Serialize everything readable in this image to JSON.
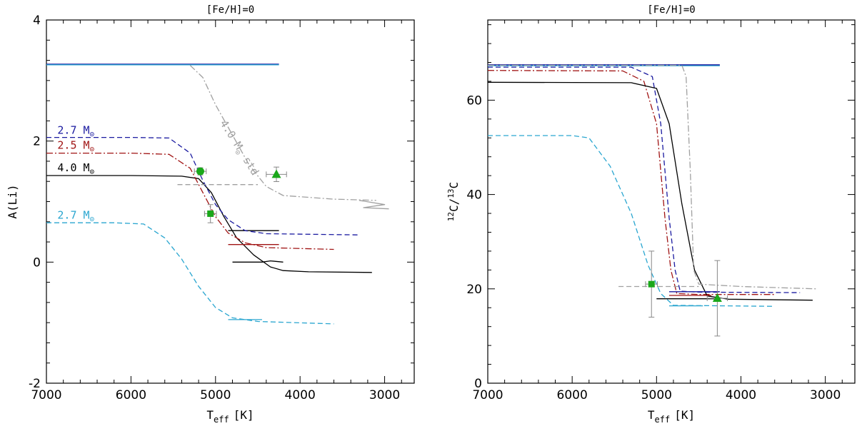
{
  "chart_data": [
    {
      "type": "line",
      "title": "[Fe/H]=0",
      "xlabel": "T",
      "xlabel_sub": "eff",
      "xlabel_unit": "[K]",
      "ylabel": "A(Li)",
      "xlim": [
        7000,
        2650
      ],
      "ylim": [
        -2,
        4
      ],
      "xticks": [
        7000,
        6000,
        5000,
        4000,
        3000
      ],
      "yticks": [
        -2,
        0,
        2,
        4
      ],
      "annotations": [
        {
          "text": "2.7 M",
          "color": "#1a1aa0",
          "x": 6870,
          "y": 2.12
        },
        {
          "text": "2.5 M",
          "color": "#a01414",
          "x": 6870,
          "y": 1.87
        },
        {
          "text": "4.0 M",
          "color": "#000000",
          "x": 6870,
          "y": 1.5
        },
        {
          "text": "2.7 M",
          "color": "#2aa6d0",
          "x": 6870,
          "y": 0.72
        },
        {
          "text": "4.0 M",
          "suffix": " std",
          "color": "#a0a0a0",
          "x": 4950,
          "y": 2.3,
          "rotate": 58
        }
      ],
      "series": [
        {
          "color": "#000000",
          "style": "solid",
          "points": [
            [
              7000,
              1.43
            ],
            [
              6000,
              1.43
            ],
            [
              5400,
              1.42
            ],
            [
              5200,
              1.38
            ],
            [
              5050,
              1.15
            ],
            [
              4900,
              0.75
            ],
            [
              4750,
              0.4
            ],
            [
              4550,
              0.12
            ],
            [
              4350,
              -0.08
            ],
            [
              4200,
              -0.14
            ],
            [
              3900,
              -0.16
            ],
            [
              3150,
              -0.17
            ]
          ]
        },
        {
          "color": "#000000",
          "style": "solid",
          "points": [
            [
              4800,
              0.0
            ],
            [
              4450,
              0.0
            ],
            [
              4350,
              0.02
            ],
            [
              4200,
              0.0
            ]
          ]
        },
        {
          "color": "#000000",
          "style": "solid",
          "points": [
            [
              4850,
              0.52
            ],
            [
              4250,
              0.52
            ]
          ]
        },
        {
          "color": "#1a1aa0",
          "style": "dashed",
          "points": [
            [
              7000,
              2.06
            ],
            [
              6000,
              2.06
            ],
            [
              5550,
              2.05
            ],
            [
              5300,
              1.8
            ],
            [
              5150,
              1.35
            ],
            [
              5000,
              0.95
            ],
            [
              4850,
              0.7
            ],
            [
              4650,
              0.52
            ],
            [
              4400,
              0.47
            ],
            [
              3300,
              0.45
            ]
          ]
        },
        {
          "color": "#a01414",
          "style": "dashdot",
          "points": [
            [
              7000,
              1.8
            ],
            [
              6000,
              1.8
            ],
            [
              5550,
              1.78
            ],
            [
              5300,
              1.55
            ],
            [
              5150,
              1.15
            ],
            [
              5000,
              0.75
            ],
            [
              4850,
              0.48
            ],
            [
              4650,
              0.32
            ],
            [
              4400,
              0.24
            ],
            [
              3600,
              0.21
            ]
          ]
        },
        {
          "color": "#a01414",
          "style": "solid",
          "points": [
            [
              4850,
              0.29
            ],
            [
              4250,
              0.29
            ]
          ]
        },
        {
          "color": "#2aa6d0",
          "style": "dashed",
          "points": [
            [
              7000,
              0.65
            ],
            [
              6200,
              0.65
            ],
            [
              5850,
              0.63
            ],
            [
              5600,
              0.4
            ],
            [
              5400,
              0.05
            ],
            [
              5200,
              -0.4
            ],
            [
              5000,
              -0.75
            ],
            [
              4800,
              -0.92
            ],
            [
              4500,
              -0.98
            ],
            [
              3600,
              -1.02
            ]
          ]
        },
        {
          "color": "#2aa6d0",
          "style": "solid",
          "points": [
            [
              4850,
              -0.95
            ],
            [
              4450,
              -0.95
            ]
          ]
        },
        {
          "color": "#1a1aa0",
          "style": "solid",
          "points": [
            [
              7000,
              3.27
            ],
            [
              4250,
              3.27
            ]
          ]
        },
        {
          "color": "#2aa6d0",
          "style": "solid",
          "points": [
            [
              7000,
              3.26
            ],
            [
              4250,
              3.26
            ]
          ]
        },
        {
          "color": "#a0a0a0",
          "style": "dashdot",
          "points": [
            [
              5300,
              3.25
            ],
            [
              5150,
              3.05
            ],
            [
              5000,
              2.6
            ],
            [
              4800,
              2.1
            ],
            [
              4600,
              1.6
            ],
            [
              4400,
              1.25
            ],
            [
              4200,
              1.1
            ],
            [
              3600,
              1.04
            ],
            [
              3100,
              1.02
            ]
          ]
        },
        {
          "color": "#a0a0a0",
          "style": "dashed",
          "points": [
            [
              5450,
              1.28
            ],
            [
              4500,
              1.28
            ]
          ]
        },
        {
          "color": "#a0a0a0",
          "style": "solid",
          "points": [
            [
              3300,
              1.02
            ],
            [
              3000,
              0.95
            ],
            [
              3250,
              0.9
            ],
            [
              2950,
              0.88
            ]
          ]
        }
      ],
      "points": [
        {
          "marker": "circle",
          "x": 5180,
          "y": 1.5,
          "xerr": 70,
          "yerr": 0.06
        },
        {
          "marker": "square",
          "x": 5060,
          "y": 0.8,
          "xerr": 70,
          "yerr": 0.15
        },
        {
          "marker": "triangle",
          "x": 4280,
          "y": 1.45,
          "xerr": 120,
          "yerr": 0.12
        }
      ]
    },
    {
      "type": "line",
      "title": "[Fe/H]=0",
      "xlabel": "T",
      "xlabel_sub": "eff",
      "xlabel_unit": "[K]",
      "ylabel": "12C/13C",
      "ylabel_pre": "12",
      "ylabel_mid": "C/",
      "ylabel_sup2": "13",
      "ylabel_end": "C",
      "xlim": [
        7000,
        2650
      ],
      "ylim": [
        0,
        77
      ],
      "xticks": [
        7000,
        6000,
        5000,
        4000,
        3000
      ],
      "yticks": [
        0,
        20,
        40,
        60
      ],
      "series": [
        {
          "color": "#1a1aa0",
          "style": "solid",
          "points": [
            [
              7000,
              67.5
            ],
            [
              4250,
              67.5
            ]
          ]
        },
        {
          "color": "#2aa6d0",
          "style": "solid",
          "points": [
            [
              7000,
              67.3
            ],
            [
              4250,
              67.3
            ]
          ]
        },
        {
          "color": "#1a1aa0",
          "style": "dashed",
          "points": [
            [
              7000,
              67.0
            ],
            [
              5300,
              67.0
            ],
            [
              5050,
              65
            ],
            [
              4950,
              55
            ],
            [
              4850,
              35
            ],
            [
              4780,
              24
            ],
            [
              4720,
              19.5
            ],
            [
              4500,
              19.3
            ],
            [
              3300,
              19.2
            ]
          ]
        },
        {
          "color": "#a01414",
          "style": "dashdot",
          "points": [
            [
              7000,
              66.3
            ],
            [
              5400,
              66.2
            ],
            [
              5150,
              64
            ],
            [
              5000,
              55
            ],
            [
              4900,
              35
            ],
            [
              4830,
              24
            ],
            [
              4760,
              19
            ],
            [
              4500,
              18.8
            ],
            [
              3600,
              18.8
            ]
          ]
        },
        {
          "color": "#000000",
          "style": "solid",
          "points": [
            [
              7000,
              63.8
            ],
            [
              5300,
              63.7
            ],
            [
              5000,
              62.5
            ],
            [
              4850,
              55
            ],
            [
              4700,
              38
            ],
            [
              4550,
              24
            ],
            [
              4400,
              18.5
            ],
            [
              4150,
              17.8
            ],
            [
              3150,
              17.6
            ]
          ]
        },
        {
          "color": "#2aa6d0",
          "style": "dashed",
          "points": [
            [
              7000,
              52.5
            ],
            [
              6000,
              52.5
            ],
            [
              5800,
              52
            ],
            [
              5550,
              46
            ],
            [
              5300,
              36
            ],
            [
              5100,
              25
            ],
            [
              4950,
              19
            ],
            [
              4800,
              16.5
            ],
            [
              3600,
              16.3
            ]
          ]
        },
        {
          "color": "#a0a0a0",
          "style": "dashdot",
          "points": [
            [
              7000,
              67.4
            ],
            [
              4700,
              67.4
            ],
            [
              4650,
              65
            ],
            [
              4600,
              45
            ],
            [
              4560,
              24
            ],
            [
              4500,
              21
            ],
            [
              4000,
              20.5
            ],
            [
              3100,
              20
            ]
          ]
        },
        {
          "color": "#a0a0a0",
          "style": "dashed",
          "points": [
            [
              5450,
              20.5
            ],
            [
              4500,
              20.5
            ]
          ]
        },
        {
          "color": "#1a1aa0",
          "style": "solid",
          "points": [
            [
              4850,
              19.4
            ],
            [
              4250,
              19.4
            ]
          ]
        },
        {
          "color": "#a01414",
          "style": "solid",
          "points": [
            [
              4850,
              18.6
            ],
            [
              4350,
              18.6
            ]
          ]
        },
        {
          "color": "#000000",
          "style": "solid",
          "points": [
            [
              5000,
              17.9
            ],
            [
              4250,
              17.9
            ]
          ]
        },
        {
          "color": "#2aa6d0",
          "style": "solid",
          "points": [
            [
              4850,
              16.4
            ],
            [
              4450,
              16.4
            ]
          ]
        }
      ],
      "points": [
        {
          "marker": "square",
          "x": 5060,
          "y": 21,
          "xerr": 70,
          "yerr": 7
        },
        {
          "marker": "triangle",
          "x": 4280,
          "y": 18,
          "xerr": 120,
          "yerr": 8
        }
      ]
    }
  ]
}
